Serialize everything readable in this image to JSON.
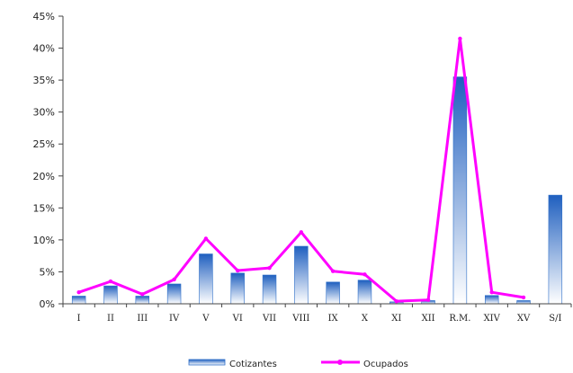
{
  "chart_data": {
    "type": "bar",
    "title": "",
    "xlabel": "",
    "ylabel": "",
    "ylim": [
      0,
      45
    ],
    "y_ticks": [
      "0%",
      "5%",
      "10%",
      "15%",
      "20%",
      "25%",
      "30%",
      "35%",
      "40%",
      "45%"
    ],
    "y_tick_values": [
      0,
      5,
      10,
      15,
      20,
      25,
      30,
      35,
      40,
      45
    ],
    "categories": [
      "I",
      "II",
      "III",
      "IV",
      "V",
      "VI",
      "VII",
      "VIII",
      "IX",
      "X",
      "XI",
      "XII",
      "R.M.",
      "XIV",
      "XV",
      "S/I"
    ],
    "series": [
      {
        "name": "Cotizantes",
        "kind": "bar",
        "values": [
          1.2,
          2.8,
          1.2,
          3.1,
          7.8,
          4.8,
          4.5,
          9.0,
          3.4,
          3.7,
          0.3,
          0.5,
          35.5,
          1.3,
          0.5,
          17.0
        ]
      },
      {
        "name": "Ocupados",
        "kind": "line",
        "color": "#ff00ff",
        "values": [
          1.8,
          3.5,
          1.5,
          3.8,
          10.2,
          5.2,
          5.6,
          11.2,
          5.1,
          4.6,
          0.4,
          0.6,
          41.5,
          1.8,
          1.0,
          null
        ]
      }
    ],
    "legend_position": "bottom-center",
    "grid": false,
    "colors": {
      "bar_top": "#1f5fbf",
      "bar_bottom": "#ffffff",
      "bar_stroke": "#2e6fc8",
      "line": "#ff00ff",
      "axis": "#444444"
    }
  }
}
